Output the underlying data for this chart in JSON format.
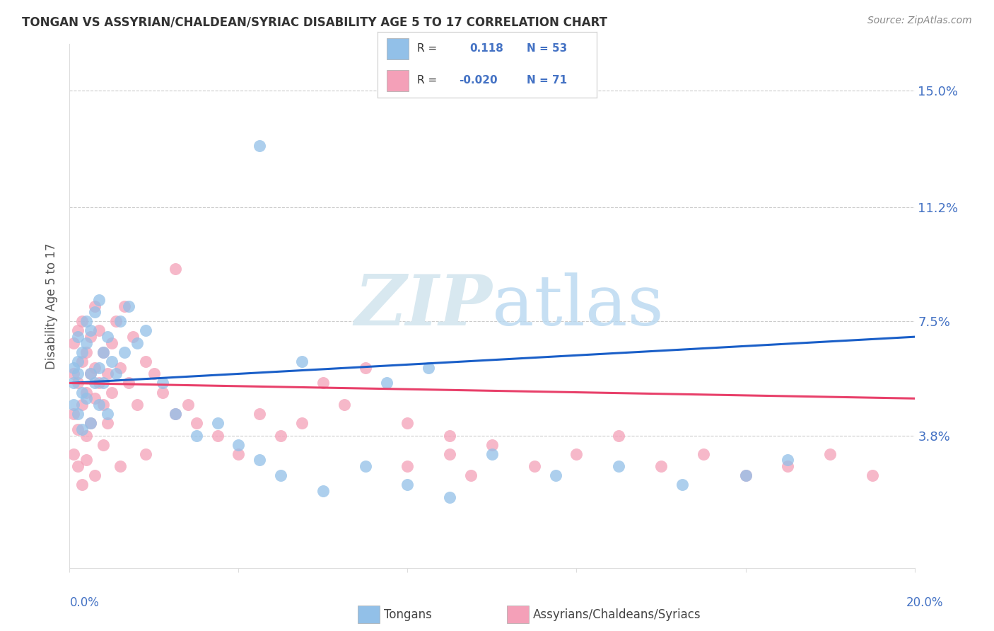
{
  "title": "TONGAN VS ASSYRIAN/CHALDEAN/SYRIAC DISABILITY AGE 5 TO 17 CORRELATION CHART",
  "source": "Source: ZipAtlas.com",
  "ylabel": "Disability Age 5 to 17",
  "ytick_vals": [
    0.038,
    0.075,
    0.112,
    0.15
  ],
  "ytick_labels": [
    "3.8%",
    "7.5%",
    "11.2%",
    "15.0%"
  ],
  "xlim": [
    0.0,
    0.2
  ],
  "ylim": [
    -0.005,
    0.165
  ],
  "legend_label1": "Tongans",
  "legend_label2": "Assyrians/Chaldeans/Syriacs",
  "blue_color": "#92C0E8",
  "pink_color": "#F4A0B8",
  "trendline_blue": "#1A5FC8",
  "trendline_pink": "#E8406A",
  "background_color": "#FFFFFF",
  "grid_color": "#CCCCCC",
  "title_color": "#333333",
  "axis_label_color": "#4472C4",
  "watermark_color": "#D8E8F0",
  "tongan_x": [
    0.001,
    0.001,
    0.001,
    0.002,
    0.002,
    0.002,
    0.002,
    0.003,
    0.003,
    0.003,
    0.004,
    0.004,
    0.004,
    0.005,
    0.005,
    0.005,
    0.006,
    0.006,
    0.007,
    0.007,
    0.007,
    0.008,
    0.008,
    0.009,
    0.009,
    0.01,
    0.011,
    0.012,
    0.013,
    0.014,
    0.016,
    0.018,
    0.022,
    0.025,
    0.03,
    0.035,
    0.045,
    0.05,
    0.06,
    0.07,
    0.08,
    0.09,
    0.1,
    0.115,
    0.13,
    0.145,
    0.16,
    0.17,
    0.04,
    0.055,
    0.075,
    0.085,
    0.045
  ],
  "tongan_y": [
    0.06,
    0.055,
    0.048,
    0.062,
    0.058,
    0.07,
    0.045,
    0.065,
    0.052,
    0.04,
    0.075,
    0.05,
    0.068,
    0.058,
    0.072,
    0.042,
    0.078,
    0.055,
    0.082,
    0.06,
    0.048,
    0.065,
    0.055,
    0.07,
    0.045,
    0.062,
    0.058,
    0.075,
    0.065,
    0.08,
    0.068,
    0.072,
    0.055,
    0.045,
    0.038,
    0.042,
    0.03,
    0.025,
    0.02,
    0.028,
    0.022,
    0.018,
    0.032,
    0.025,
    0.028,
    0.022,
    0.025,
    0.03,
    0.035,
    0.062,
    0.055,
    0.06,
    0.132
  ],
  "assyrian_x": [
    0.001,
    0.001,
    0.001,
    0.002,
    0.002,
    0.002,
    0.003,
    0.003,
    0.003,
    0.004,
    0.004,
    0.004,
    0.005,
    0.005,
    0.005,
    0.006,
    0.006,
    0.006,
    0.007,
    0.007,
    0.008,
    0.008,
    0.009,
    0.009,
    0.01,
    0.01,
    0.011,
    0.012,
    0.013,
    0.014,
    0.015,
    0.016,
    0.018,
    0.02,
    0.022,
    0.025,
    0.028,
    0.03,
    0.035,
    0.04,
    0.045,
    0.05,
    0.055,
    0.06,
    0.065,
    0.07,
    0.08,
    0.09,
    0.1,
    0.11,
    0.12,
    0.13,
    0.14,
    0.15,
    0.16,
    0.17,
    0.18,
    0.19,
    0.08,
    0.09,
    0.095,
    0.025,
    0.018,
    0.012,
    0.008,
    0.006,
    0.004,
    0.003,
    0.002,
    0.001
  ],
  "assyrian_y": [
    0.058,
    0.045,
    0.068,
    0.055,
    0.04,
    0.072,
    0.062,
    0.048,
    0.075,
    0.052,
    0.038,
    0.065,
    0.058,
    0.07,
    0.042,
    0.08,
    0.05,
    0.06,
    0.055,
    0.072,
    0.048,
    0.065,
    0.058,
    0.042,
    0.068,
    0.052,
    0.075,
    0.06,
    0.08,
    0.055,
    0.07,
    0.048,
    0.062,
    0.058,
    0.052,
    0.092,
    0.048,
    0.042,
    0.038,
    0.032,
    0.045,
    0.038,
    0.042,
    0.055,
    0.048,
    0.06,
    0.042,
    0.038,
    0.035,
    0.028,
    0.032,
    0.038,
    0.028,
    0.032,
    0.025,
    0.028,
    0.032,
    0.025,
    0.028,
    0.032,
    0.025,
    0.045,
    0.032,
    0.028,
    0.035,
    0.025,
    0.03,
    0.022,
    0.028,
    0.032
  ]
}
